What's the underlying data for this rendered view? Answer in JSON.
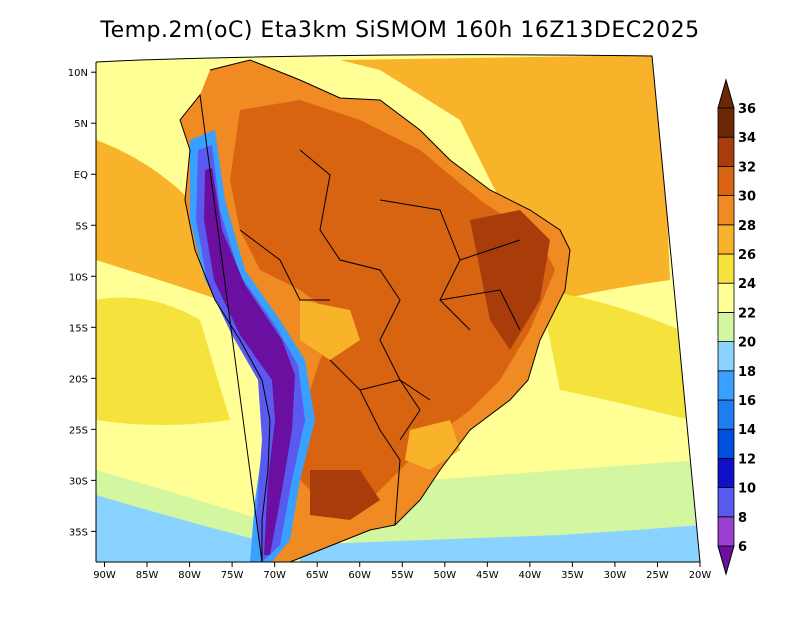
{
  "header": {
    "title": "Temp.2m(oC) Eta3km SiSMOM 160h 16Z13DEC2025"
  },
  "map": {
    "variable": "Temp.2m",
    "units": "oC",
    "model": "Eta3km",
    "run": "SiSMOM",
    "forecast_hour": "160h",
    "valid_time": "16Z13DEC2025",
    "lon_range": [
      -91,
      -20
    ],
    "lat_range": [
      -38,
      11
    ],
    "lon_ticks": [
      {
        "value": -90,
        "label": "90W"
      },
      {
        "value": -85,
        "label": "85W"
      },
      {
        "value": -80,
        "label": "80W"
      },
      {
        "value": -75,
        "label": "75W"
      },
      {
        "value": -70,
        "label": "70W"
      },
      {
        "value": -65,
        "label": "65W"
      },
      {
        "value": -60,
        "label": "60W"
      },
      {
        "value": -55,
        "label": "55W"
      },
      {
        "value": -50,
        "label": "50W"
      },
      {
        "value": -45,
        "label": "45W"
      },
      {
        "value": -40,
        "label": "40W"
      },
      {
        "value": -35,
        "label": "35W"
      },
      {
        "value": -30,
        "label": "30W"
      },
      {
        "value": -25,
        "label": "25W"
      },
      {
        "value": -20,
        "label": "20W"
      }
    ],
    "lat_ticks": [
      {
        "value": 10,
        "label": "10N"
      },
      {
        "value": 5,
        "label": "5N"
      },
      {
        "value": 0,
        "label": "EQ"
      },
      {
        "value": -5,
        "label": "5S"
      },
      {
        "value": -10,
        "label": "10S"
      },
      {
        "value": -15,
        "label": "15S"
      },
      {
        "value": -20,
        "label": "20S"
      },
      {
        "value": -25,
        "label": "25S"
      },
      {
        "value": -30,
        "label": "30S"
      },
      {
        "value": -35,
        "label": "35S"
      }
    ]
  },
  "colorbar": {
    "levels": [
      6,
      8,
      10,
      12,
      14,
      16,
      18,
      20,
      22,
      24,
      26,
      28,
      30,
      32,
      34,
      36
    ],
    "colors": [
      "#6a0fa0",
      "#9a3fd0",
      "#5a5af0",
      "#1010c8",
      "#0050e0",
      "#1e7ef0",
      "#3aa0ff",
      "#8ad2ff",
      "#d2f7a0",
      "#ffff96",
      "#f6e23c",
      "#f8b32a",
      "#f08a22",
      "#d86412",
      "#a83c0a",
      "#6a2806"
    ],
    "end_low": "#6a0fa0",
    "end_high": "#6a2806"
  },
  "colors": {
    "ocean_north_warm": "#f6c840",
    "ocean_tropical": "#f8b32a",
    "ocean_mid": "#ffff96",
    "ocean_south_cool": "#d2f7a0",
    "ocean_coast_cold": "#8ad2ff",
    "land_hot": "#d86412",
    "land_very_hot": "#a83c0a",
    "land_warm": "#f08a22",
    "andes_cold": "#5a5af0",
    "andes_colder": "#6a0fa0",
    "andes_ring": "#3aa0ff",
    "coastline": "#000000",
    "axis": "#000000"
  }
}
